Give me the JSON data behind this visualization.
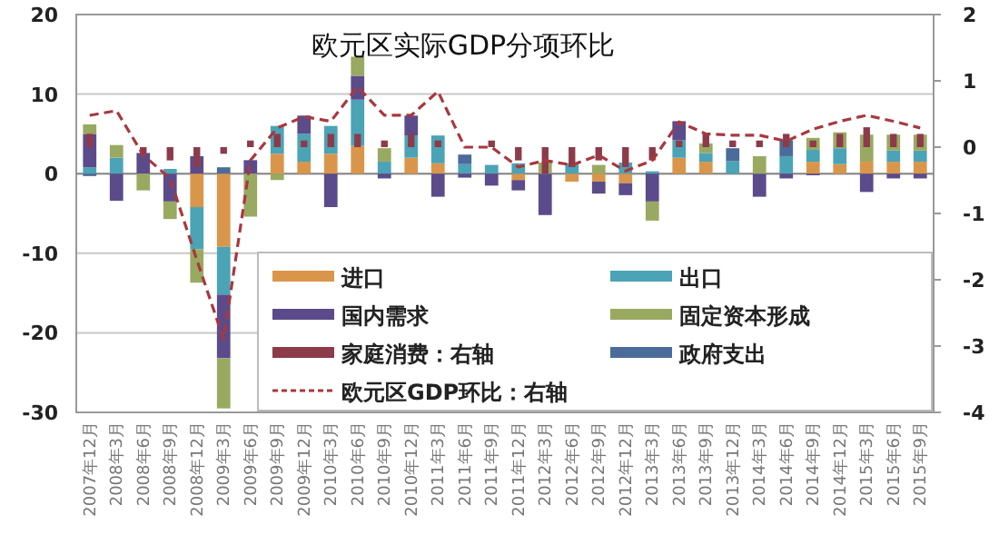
{
  "chart_data": {
    "type": "bar",
    "title": "欧元区实际GDP分项环比",
    "stacked": true,
    "categories": [
      "2007年12月",
      "2008年3月",
      "2008年6月",
      "2008年9月",
      "2008年12月",
      "2009年3月",
      "2009年6月",
      "2009年9月",
      "2009年12月",
      "2010年3月",
      "2010年6月",
      "2010年9月",
      "2010年12月",
      "2011年3月",
      "2011年6月",
      "2011年9月",
      "2011年12月",
      "2012年3月",
      "2012年6月",
      "2012年9月",
      "2012年12月",
      "2013年3月",
      "2013年6月",
      "2013年9月",
      "2013年12月",
      "2014年3月",
      "2014年6月",
      "2014年9月",
      "2014年12月",
      "2015年3月",
      "2015年6月",
      "2015年9月"
    ],
    "series": [
      {
        "name": "进口",
        "color": "#d9964b",
        "values": [
          0,
          0,
          0,
          0,
          -4.2,
          -9.2,
          0,
          2.5,
          1.5,
          2.5,
          3.5,
          0,
          2,
          1.3,
          0,
          0,
          -0.8,
          0,
          -1,
          -1,
          -1.2,
          0,
          2,
          1.5,
          0,
          0,
          0,
          1.5,
          1.2,
          1.5,
          1.5,
          1.5
        ]
      },
      {
        "name": "出口",
        "color": "#4ba3b6",
        "values": [
          0.8,
          2,
          0,
          0.6,
          -5.3,
          -6,
          0,
          3.5,
          3.5,
          3.5,
          5.8,
          1.5,
          2.8,
          3.5,
          1.2,
          1.1,
          1.3,
          0,
          1.3,
          0,
          1.4,
          0.3,
          2.2,
          1.1,
          1.6,
          0,
          2.2,
          1.5,
          2,
          0,
          1.4,
          1.4
        ]
      },
      {
        "name": "国内需求",
        "color": "#5c4b8b",
        "values": [
          4.2,
          -3.4,
          2.6,
          -3.5,
          2.2,
          -8,
          1.7,
          0,
          2.3,
          -4.2,
          3,
          -0.6,
          2.5,
          -2.9,
          -0.5,
          -1.5,
          -1.3,
          -5.2,
          0,
          -1.5,
          -1.5,
          -3.5,
          2.4,
          0,
          0,
          -2.9,
          -0.6,
          -0.2,
          0,
          -2.3,
          -0.6,
          -0.6
        ]
      },
      {
        "name": "固定资本形成",
        "color": "#9aa961",
        "values": [
          1.2,
          1.6,
          -2.1,
          -2.2,
          -4.2,
          -6.3,
          -5.4,
          -0.8,
          0,
          0,
          2.4,
          1.7,
          0,
          0,
          0,
          0,
          0,
          1.4,
          0,
          1.1,
          0,
          -2.4,
          0,
          1.2,
          0,
          2.2,
          0,
          1.5,
          2,
          3.4,
          2,
          2
        ]
      },
      {
        "name": "家庭消费：右轴",
        "color": "#8c3b4b",
        "axis": "y2",
        "values": [
          0.2,
          0,
          -0.1,
          -0.2,
          -0.3,
          -0.1,
          0.1,
          0.2,
          0.1,
          0.2,
          0.2,
          0.1,
          0.2,
          0.1,
          0,
          0.1,
          -0.2,
          -0.4,
          -0.3,
          -0.2,
          -0.3,
          -0.2,
          0.1,
          0.2,
          0.1,
          0.1,
          0.2,
          0.1,
          0.2,
          0.3,
          0.2,
          0.2
        ]
      },
      {
        "name": "政府支出",
        "color": "#4b6b9b",
        "values": [
          -0.3,
          0,
          0,
          0,
          0,
          0.8,
          0,
          0,
          0,
          0,
          0,
          0,
          0,
          0,
          1.2,
          0,
          0,
          0,
          0,
          0,
          0,
          0,
          0,
          0,
          1.6,
          0,
          2,
          0,
          0,
          0,
          0,
          0
        ]
      },
      {
        "name": "欧元区GDP环比：右轴",
        "type": "line",
        "axis": "y2",
        "color": "#a8383e",
        "line_style": "dashed",
        "marker": "none",
        "values": [
          0.48,
          0.55,
          -0.12,
          -0.47,
          -1.7,
          -2.9,
          -0.2,
          0.29,
          0.46,
          0.39,
          0.91,
          0.48,
          0.48,
          0.84,
          0,
          0,
          -0.3,
          -0.2,
          -0.27,
          -0.12,
          -0.36,
          -0.2,
          0.38,
          0.2,
          0.18,
          0.18,
          0.09,
          0.27,
          0.39,
          0.48,
          0.39,
          0.29
        ]
      }
    ],
    "ylim": [
      -30,
      20
    ],
    "yticks": [
      -30,
      -20,
      -10,
      0,
      10,
      20
    ],
    "y2lim": [
      -4,
      2
    ],
    "y2ticks": [
      -4,
      -3,
      -2,
      -1,
      0,
      1,
      2
    ],
    "grid": "y",
    "legend": "bottom right"
  }
}
